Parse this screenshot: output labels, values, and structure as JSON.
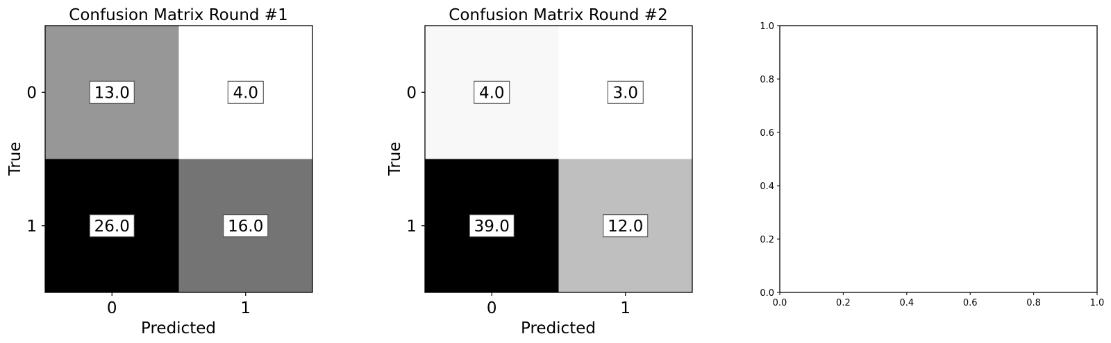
{
  "chart_data": [
    {
      "type": "heatmap",
      "title": "Confusion Matrix Round #1",
      "xlabel": "Predicted",
      "ylabel": "True",
      "x_categories": [
        "0",
        "1"
      ],
      "y_categories": [
        "0",
        "1"
      ],
      "values": [
        [
          13.0,
          4.0
        ],
        [
          26.0,
          16.0
        ]
      ],
      "value_labels": [
        [
          "13.0",
          "4.0"
        ],
        [
          "26.0",
          "16.0"
        ]
      ],
      "colormap": "gray_r",
      "grid": false
    },
    {
      "type": "heatmap",
      "title": "Confusion Matrix Round #2",
      "xlabel": "Predicted",
      "ylabel": "True",
      "x_categories": [
        "0",
        "1"
      ],
      "y_categories": [
        "0",
        "1"
      ],
      "values": [
        [
          4.0,
          3.0
        ],
        [
          39.0,
          12.0
        ]
      ],
      "value_labels": [
        [
          "4.0",
          "3.0"
        ],
        [
          "39.0",
          "12.0"
        ]
      ],
      "colormap": "gray_r",
      "grid": false
    },
    {
      "type": "scatter",
      "title": "",
      "xlabel": "",
      "ylabel": "",
      "xlim": [
        0.0,
        1.0
      ],
      "ylim": [
        0.0,
        1.0
      ],
      "xticks": [
        "0.0",
        "0.2",
        "0.4",
        "0.6",
        "0.8",
        "1.0"
      ],
      "yticks": [
        "0.0",
        "0.2",
        "0.4",
        "0.6",
        "0.8",
        "1.0"
      ],
      "series": [],
      "grid": false
    }
  ]
}
